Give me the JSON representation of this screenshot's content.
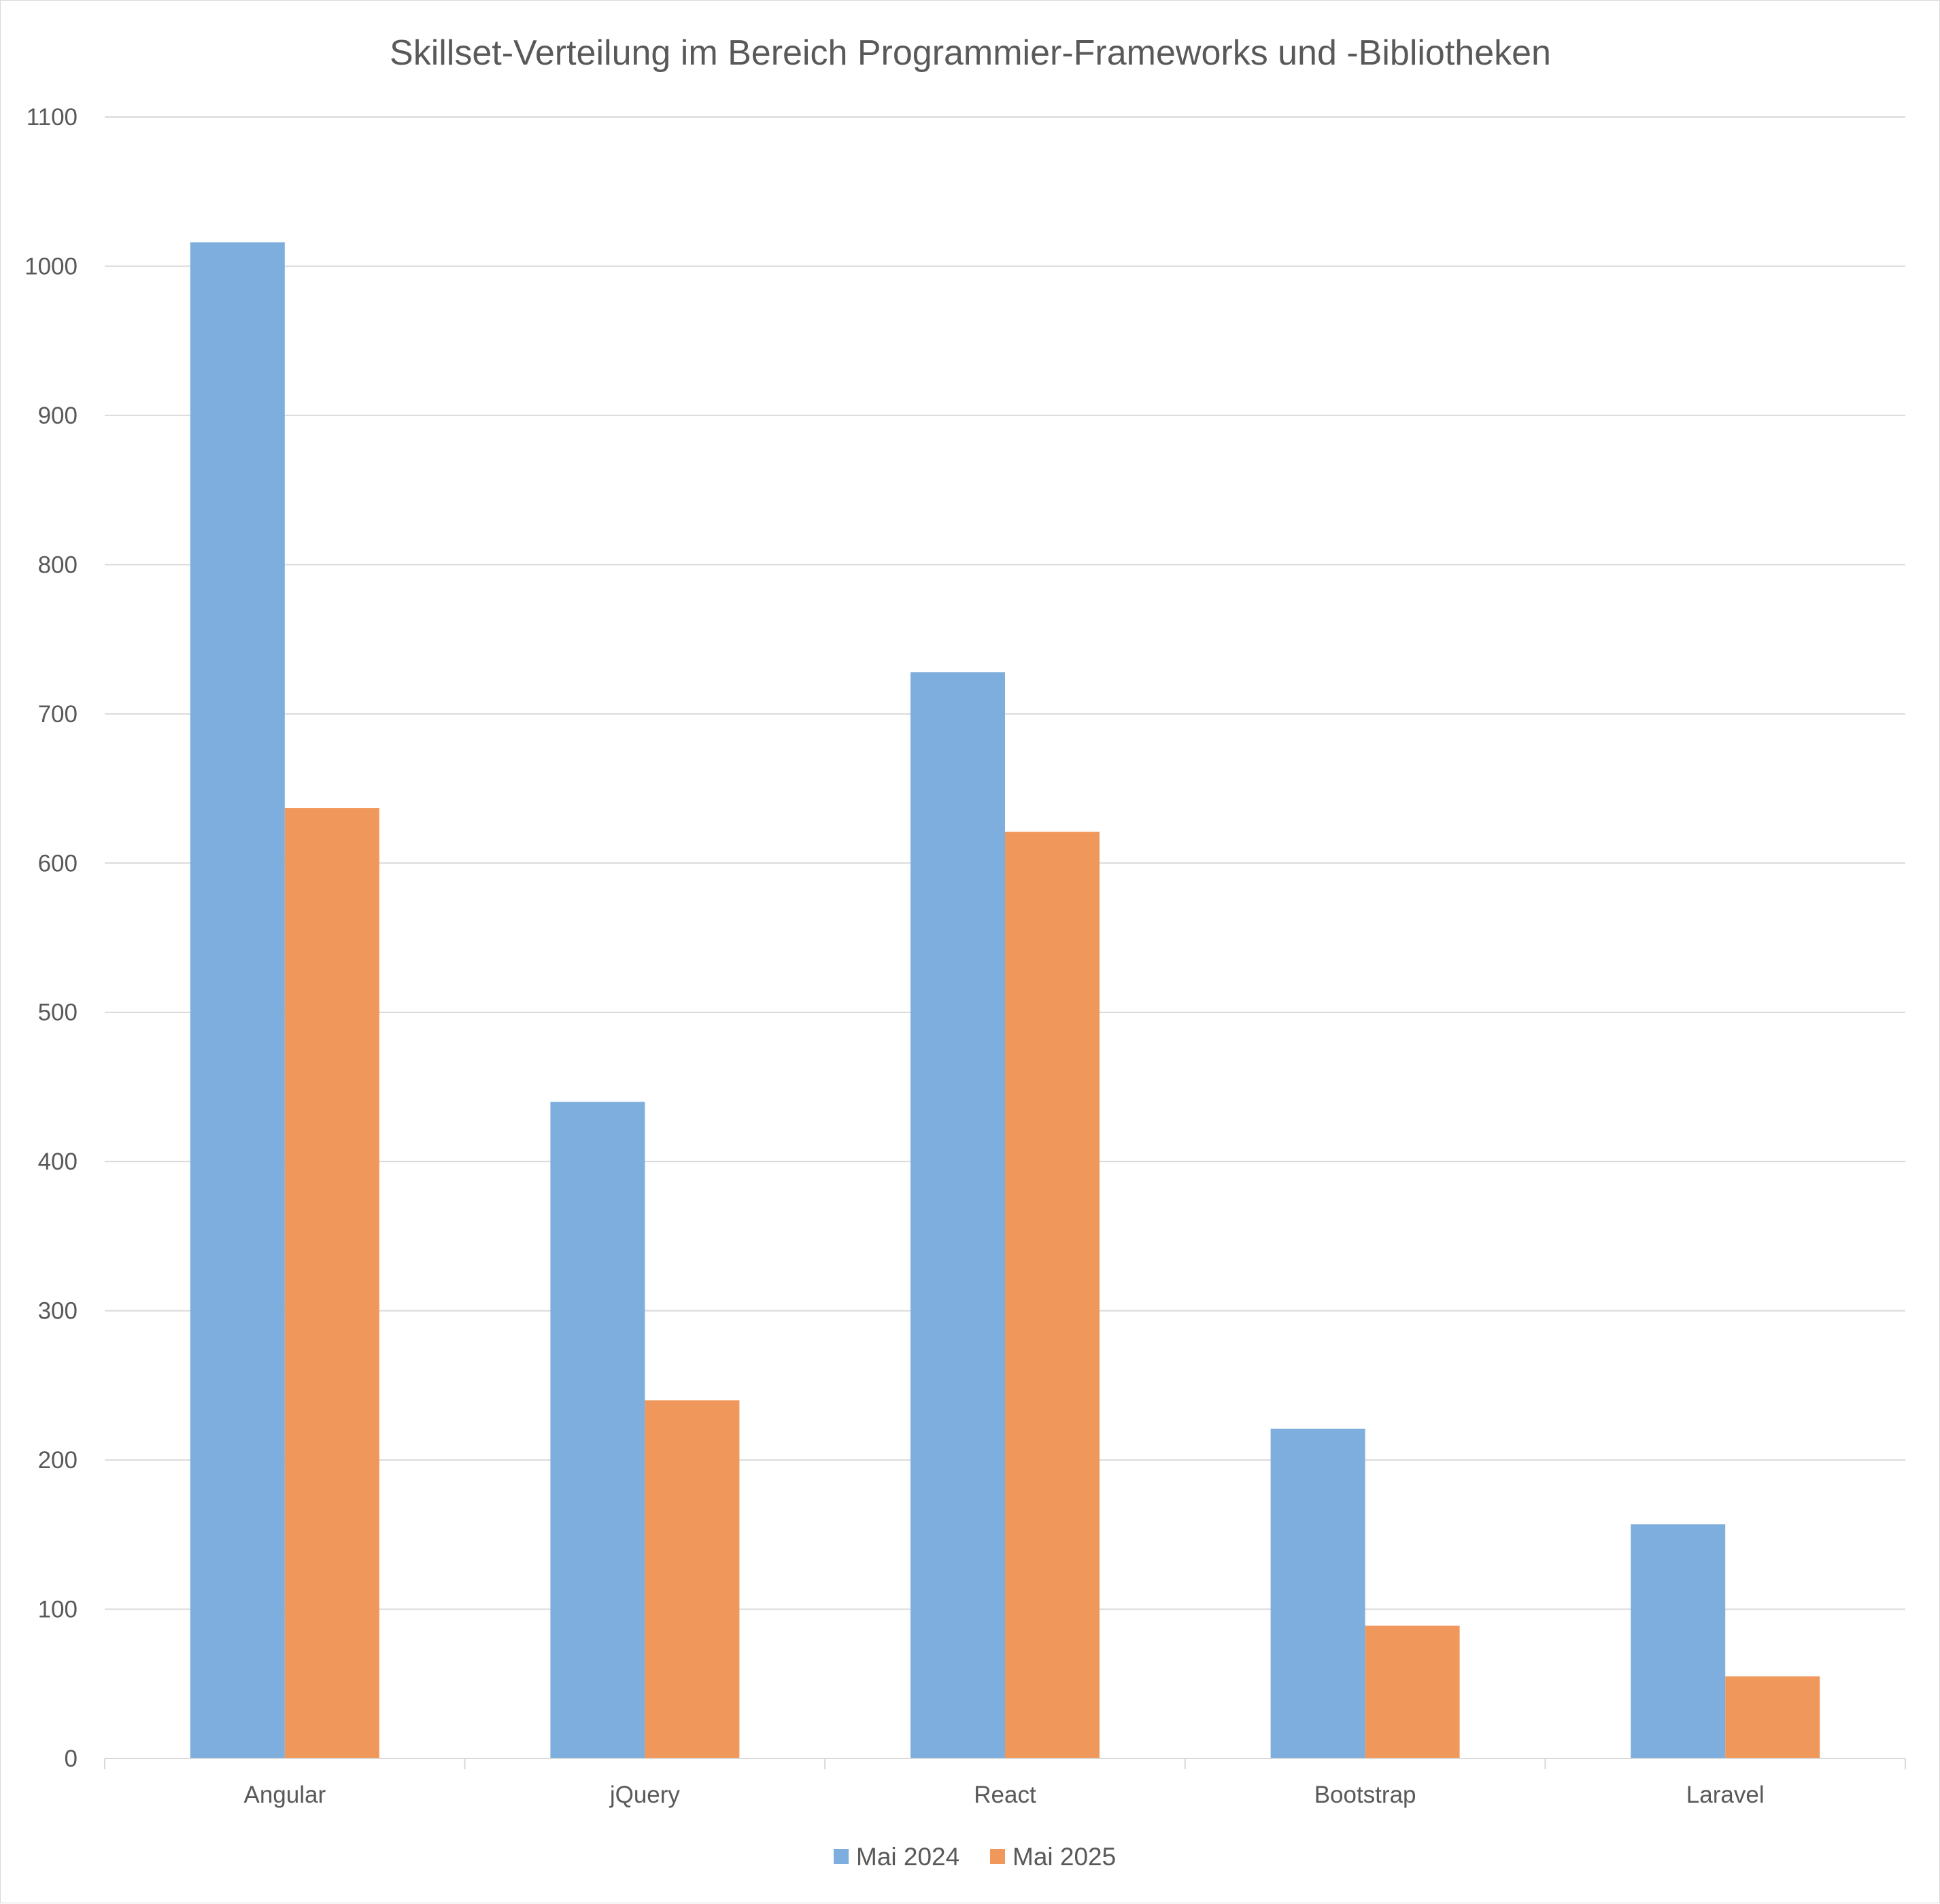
{
  "chart_data": {
    "type": "bar",
    "title": "Skillset-Verteilung im Bereich Programmier-Frameworks und -Bibliotheken",
    "xlabel": "",
    "ylabel": "",
    "categories": [
      "Angular",
      "jQuery",
      "React",
      "Bootstrap",
      "Laravel"
    ],
    "series": [
      {
        "name": "Mai 2024",
        "color": "#7eaedd",
        "values": [
          1016,
          440,
          728,
          221,
          157
        ]
      },
      {
        "name": "Mai 2025",
        "color": "#f0985b",
        "values": [
          637,
          240,
          621,
          89,
          55
        ]
      }
    ],
    "ylim": [
      0,
      1100
    ],
    "yticks": [
      0,
      100,
      200,
      300,
      400,
      500,
      600,
      700,
      800,
      900,
      1000,
      1100
    ],
    "grid": true,
    "gridline_color": "#d9d9d9",
    "legend_position": "bottom"
  }
}
